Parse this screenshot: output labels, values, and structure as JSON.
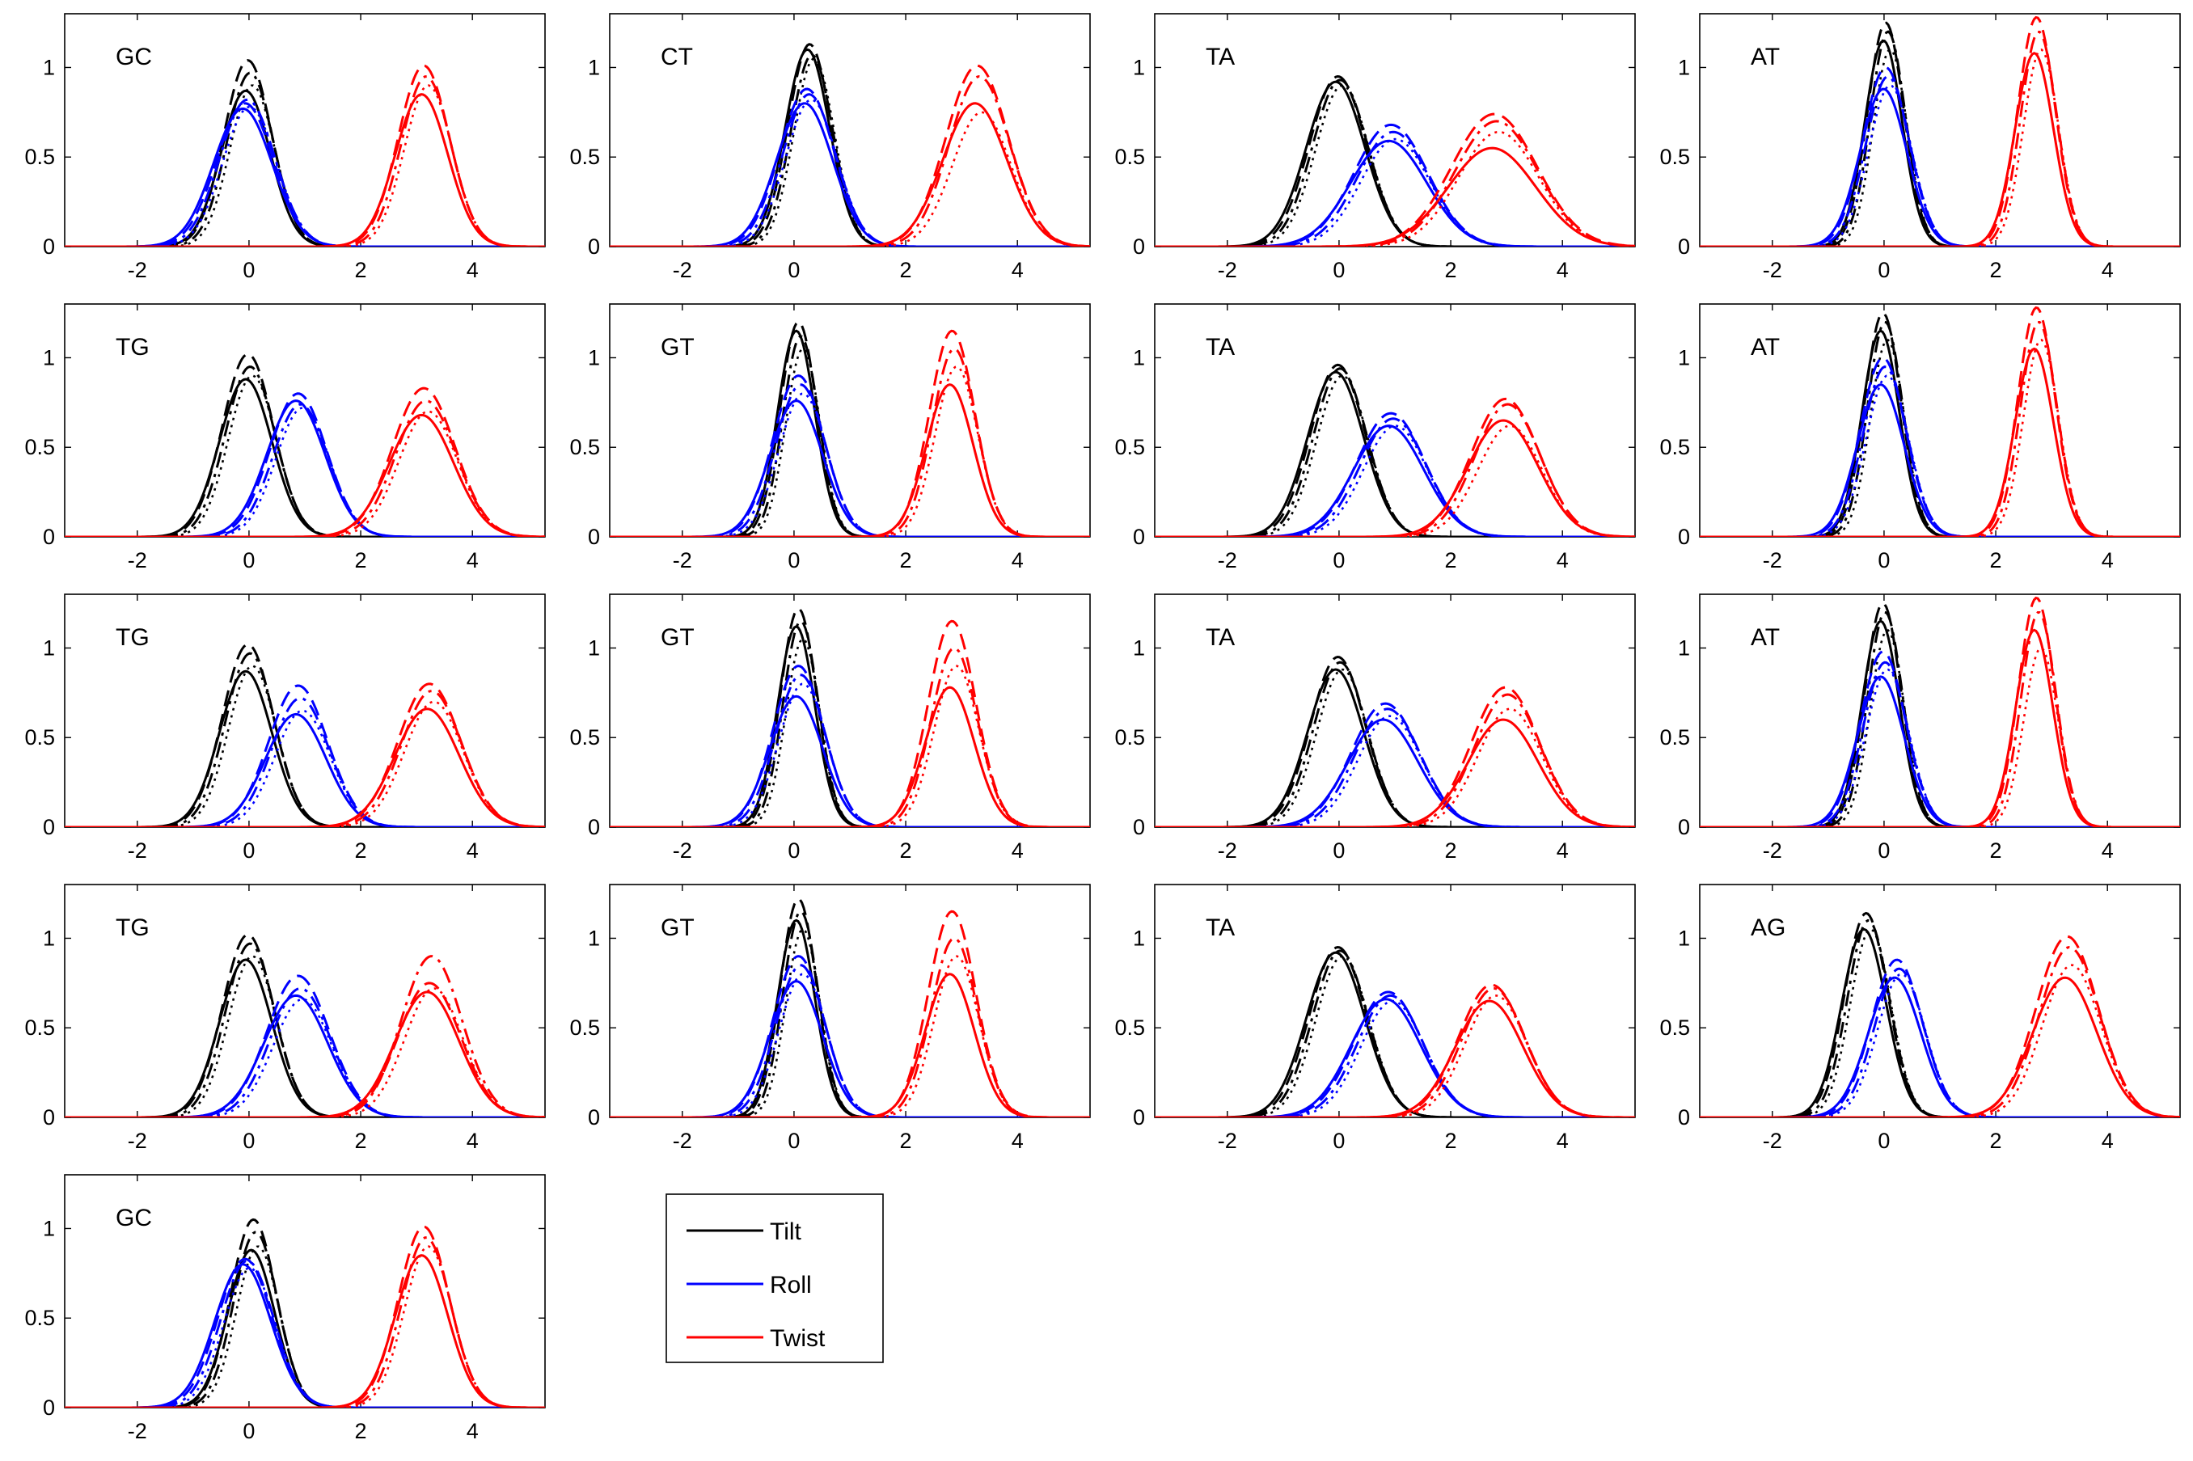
{
  "chart_data": {
    "type": "line",
    "title": "",
    "xlabel": "",
    "ylabel": "",
    "xlim": [
      -3.3,
      5.3
    ],
    "ylim": [
      0,
      1.3
    ],
    "xticks": [
      -2,
      0,
      2,
      4
    ],
    "yticks": [
      0,
      0.5,
      1
    ],
    "xtick_labels": [
      "-2",
      "0",
      "2",
      "4"
    ],
    "ytick_labels": [
      "0",
      "0.5",
      "1"
    ],
    "grid": false,
    "line_styles": [
      "solid",
      "dashed",
      "dashdot",
      "dotted"
    ],
    "legend": {
      "placement": "below panel row 4, column 2",
      "entries": [
        {
          "label": "Tilt",
          "color": "#000000"
        },
        {
          "label": "Roll",
          "color": "#0000ff"
        },
        {
          "label": "Twist",
          "color": "#ff0000"
        }
      ]
    },
    "panels": [
      {
        "label": "GC",
        "row": 0,
        "col": 0,
        "tilt": {
          "mu": 0.0,
          "peaks": [
            0.87,
            1.04,
            0.97,
            0.9
          ],
          "sigma": 0.42
        },
        "roll": {
          "mu": -0.05,
          "peaks": [
            0.77,
            0.8,
            0.82,
            0.78
          ],
          "sigma": 0.5
        },
        "twist": {
          "mu": 3.15,
          "peaks": [
            0.85,
            1.01,
            0.95,
            0.9
          ],
          "sigma": 0.45
        }
      },
      {
        "label": "CT",
        "row": 0,
        "col": 1,
        "tilt": {
          "mu": 0.3,
          "peaks": [
            1.1,
            1.13,
            1.07,
            1.05
          ],
          "sigma": 0.38
        },
        "roll": {
          "mu": 0.25,
          "peaks": [
            0.8,
            0.88,
            0.85,
            0.82
          ],
          "sigma": 0.48
        },
        "twist": {
          "mu": 3.3,
          "peaks": [
            0.8,
            1.01,
            0.95,
            0.75
          ],
          "sigma": 0.55
        }
      },
      {
        "label": "TA",
        "row": 0,
        "col": 2,
        "tilt": {
          "mu": 0.0,
          "peaks": [
            0.92,
            0.95,
            0.93,
            0.9
          ],
          "sigma": 0.5
        },
        "roll": {
          "mu": 0.95,
          "peaks": [
            0.59,
            0.68,
            0.64,
            0.6
          ],
          "sigma": 0.65
        },
        "twist": {
          "mu": 2.8,
          "peaks": [
            0.55,
            0.74,
            0.7,
            0.64
          ],
          "sigma": 0.75
        }
      },
      {
        "label": "AT",
        "row": 0,
        "col": 3,
        "tilt": {
          "mu": 0.05,
          "peaks": [
            1.15,
            1.25,
            1.2,
            1.1
          ],
          "sigma": 0.32
        },
        "roll": {
          "mu": 0.05,
          "peaks": [
            0.88,
            1.0,
            0.95,
            0.9
          ],
          "sigma": 0.4
        },
        "twist": {
          "mu": 2.75,
          "peaks": [
            1.08,
            1.28,
            1.2,
            1.1
          ],
          "sigma": 0.33
        }
      },
      {
        "label": "TG",
        "row": 1,
        "col": 0,
        "tilt": {
          "mu": 0.0,
          "peaks": [
            0.88,
            1.02,
            0.95,
            0.9
          ],
          "sigma": 0.45
        },
        "roll": {
          "mu": 0.9,
          "peaks": [
            0.76,
            0.8,
            0.74,
            0.72
          ],
          "sigma": 0.5
        },
        "twist": {
          "mu": 3.15,
          "peaks": [
            0.68,
            0.83,
            0.76,
            0.7
          ],
          "sigma": 0.55
        }
      },
      {
        "label": "GT",
        "row": 1,
        "col": 1,
        "tilt": {
          "mu": 0.1,
          "peaks": [
            1.15,
            1.2,
            1.12,
            1.05
          ],
          "sigma": 0.32
        },
        "roll": {
          "mu": 0.1,
          "peaks": [
            0.76,
            0.9,
            0.85,
            0.8
          ],
          "sigma": 0.45
        },
        "twist": {
          "mu": 2.85,
          "peaks": [
            0.85,
            1.15,
            1.05,
            0.95
          ],
          "sigma": 0.4
        }
      },
      {
        "label": "TA",
        "row": 1,
        "col": 2,
        "tilt": {
          "mu": 0.0,
          "peaks": [
            0.92,
            0.96,
            0.94,
            0.9
          ],
          "sigma": 0.48
        },
        "roll": {
          "mu": 0.95,
          "peaks": [
            0.62,
            0.69,
            0.66,
            0.62
          ],
          "sigma": 0.6
        },
        "twist": {
          "mu": 3.0,
          "peaks": [
            0.65,
            0.77,
            0.74,
            0.62
          ],
          "sigma": 0.6
        }
      },
      {
        "label": "AT",
        "row": 1,
        "col": 3,
        "tilt": {
          "mu": 0.0,
          "peaks": [
            1.15,
            1.25,
            1.2,
            1.1
          ],
          "sigma": 0.32
        },
        "roll": {
          "mu": 0.0,
          "peaks": [
            0.85,
            1.0,
            0.95,
            0.9
          ],
          "sigma": 0.4
        },
        "twist": {
          "mu": 2.75,
          "peaks": [
            1.05,
            1.28,
            1.2,
            1.1
          ],
          "sigma": 0.33
        }
      },
      {
        "label": "TG",
        "row": 2,
        "col": 0,
        "tilt": {
          "mu": 0.0,
          "peaks": [
            0.87,
            1.02,
            0.97,
            0.9
          ],
          "sigma": 0.45
        },
        "roll": {
          "mu": 0.9,
          "peaks": [
            0.63,
            0.79,
            0.72,
            0.65
          ],
          "sigma": 0.52
        },
        "twist": {
          "mu": 3.25,
          "peaks": [
            0.66,
            0.8,
            0.76,
            0.7
          ],
          "sigma": 0.55
        }
      },
      {
        "label": "GT",
        "row": 2,
        "col": 1,
        "tilt": {
          "mu": 0.1,
          "peaks": [
            1.12,
            1.22,
            1.15,
            1.05
          ],
          "sigma": 0.32
        },
        "roll": {
          "mu": 0.1,
          "peaks": [
            0.73,
            0.9,
            0.85,
            0.8
          ],
          "sigma": 0.45
        },
        "twist": {
          "mu": 2.85,
          "peaks": [
            0.78,
            1.15,
            1.0,
            0.9
          ],
          "sigma": 0.42
        }
      },
      {
        "label": "TA",
        "row": 2,
        "col": 2,
        "tilt": {
          "mu": 0.0,
          "peaks": [
            0.88,
            0.95,
            0.92,
            0.88
          ],
          "sigma": 0.48
        },
        "roll": {
          "mu": 0.85,
          "peaks": [
            0.6,
            0.69,
            0.66,
            0.62
          ],
          "sigma": 0.6
        },
        "twist": {
          "mu": 3.0,
          "peaks": [
            0.6,
            0.78,
            0.74,
            0.66
          ],
          "sigma": 0.6
        }
      },
      {
        "label": "AT",
        "row": 2,
        "col": 3,
        "tilt": {
          "mu": 0.0,
          "peaks": [
            1.15,
            1.25,
            1.2,
            1.1
          ],
          "sigma": 0.32
        },
        "roll": {
          "mu": 0.0,
          "peaks": [
            0.84,
            0.98,
            0.92,
            0.88
          ],
          "sigma": 0.4
        },
        "twist": {
          "mu": 2.75,
          "peaks": [
            1.1,
            1.28,
            1.2,
            1.0
          ],
          "sigma": 0.32
        }
      },
      {
        "label": "TG",
        "row": 3,
        "col": 0,
        "tilt": {
          "mu": 0.0,
          "peaks": [
            0.88,
            1.02,
            0.97,
            0.9
          ],
          "sigma": 0.45
        },
        "roll": {
          "mu": 0.9,
          "peaks": [
            0.68,
            0.79,
            0.72,
            0.66
          ],
          "sigma": 0.55
        },
        "twist": {
          "mu": 3.25,
          "peaks": [
            0.7,
            0.75,
            0.9,
            0.72
          ],
          "sigma": 0.55
        }
      },
      {
        "label": "GT",
        "row": 3,
        "col": 1,
        "tilt": {
          "mu": 0.1,
          "peaks": [
            1.1,
            1.22,
            1.15,
            1.05
          ],
          "sigma": 0.32
        },
        "roll": {
          "mu": 0.1,
          "peaks": [
            0.76,
            0.9,
            0.85,
            0.8
          ],
          "sigma": 0.45
        },
        "twist": {
          "mu": 2.85,
          "peaks": [
            0.8,
            1.15,
            1.0,
            0.9
          ],
          "sigma": 0.42
        }
      },
      {
        "label": "TA",
        "row": 3,
        "col": 2,
        "tilt": {
          "mu": 0.0,
          "peaks": [
            0.92,
            0.95,
            0.93,
            0.9
          ],
          "sigma": 0.5
        },
        "roll": {
          "mu": 0.9,
          "peaks": [
            0.66,
            0.7,
            0.68,
            0.65
          ],
          "sigma": 0.6
        },
        "twist": {
          "mu": 2.75,
          "peaks": [
            0.65,
            0.74,
            0.72,
            0.68
          ],
          "sigma": 0.58
        }
      },
      {
        "label": "AG",
        "row": 3,
        "col": 3,
        "tilt": {
          "mu": -0.3,
          "peaks": [
            1.05,
            1.14,
            1.1,
            1.05
          ],
          "sigma": 0.38
        },
        "roll": {
          "mu": 0.25,
          "peaks": [
            0.78,
            0.88,
            0.83,
            0.8
          ],
          "sigma": 0.45
        },
        "twist": {
          "mu": 3.3,
          "peaks": [
            0.78,
            1.01,
            0.95,
            0.85
          ],
          "sigma": 0.55
        }
      },
      {
        "label": "GC",
        "row": 4,
        "col": 0,
        "tilt": {
          "mu": 0.1,
          "peaks": [
            0.88,
            1.05,
            0.98,
            0.9
          ],
          "sigma": 0.4
        },
        "roll": {
          "mu": -0.05,
          "peaks": [
            0.8,
            0.83,
            0.82,
            0.78
          ],
          "sigma": 0.48
        },
        "twist": {
          "mu": 3.15,
          "peaks": [
            0.85,
            1.01,
            0.95,
            0.9
          ],
          "sigma": 0.45
        }
      }
    ]
  }
}
